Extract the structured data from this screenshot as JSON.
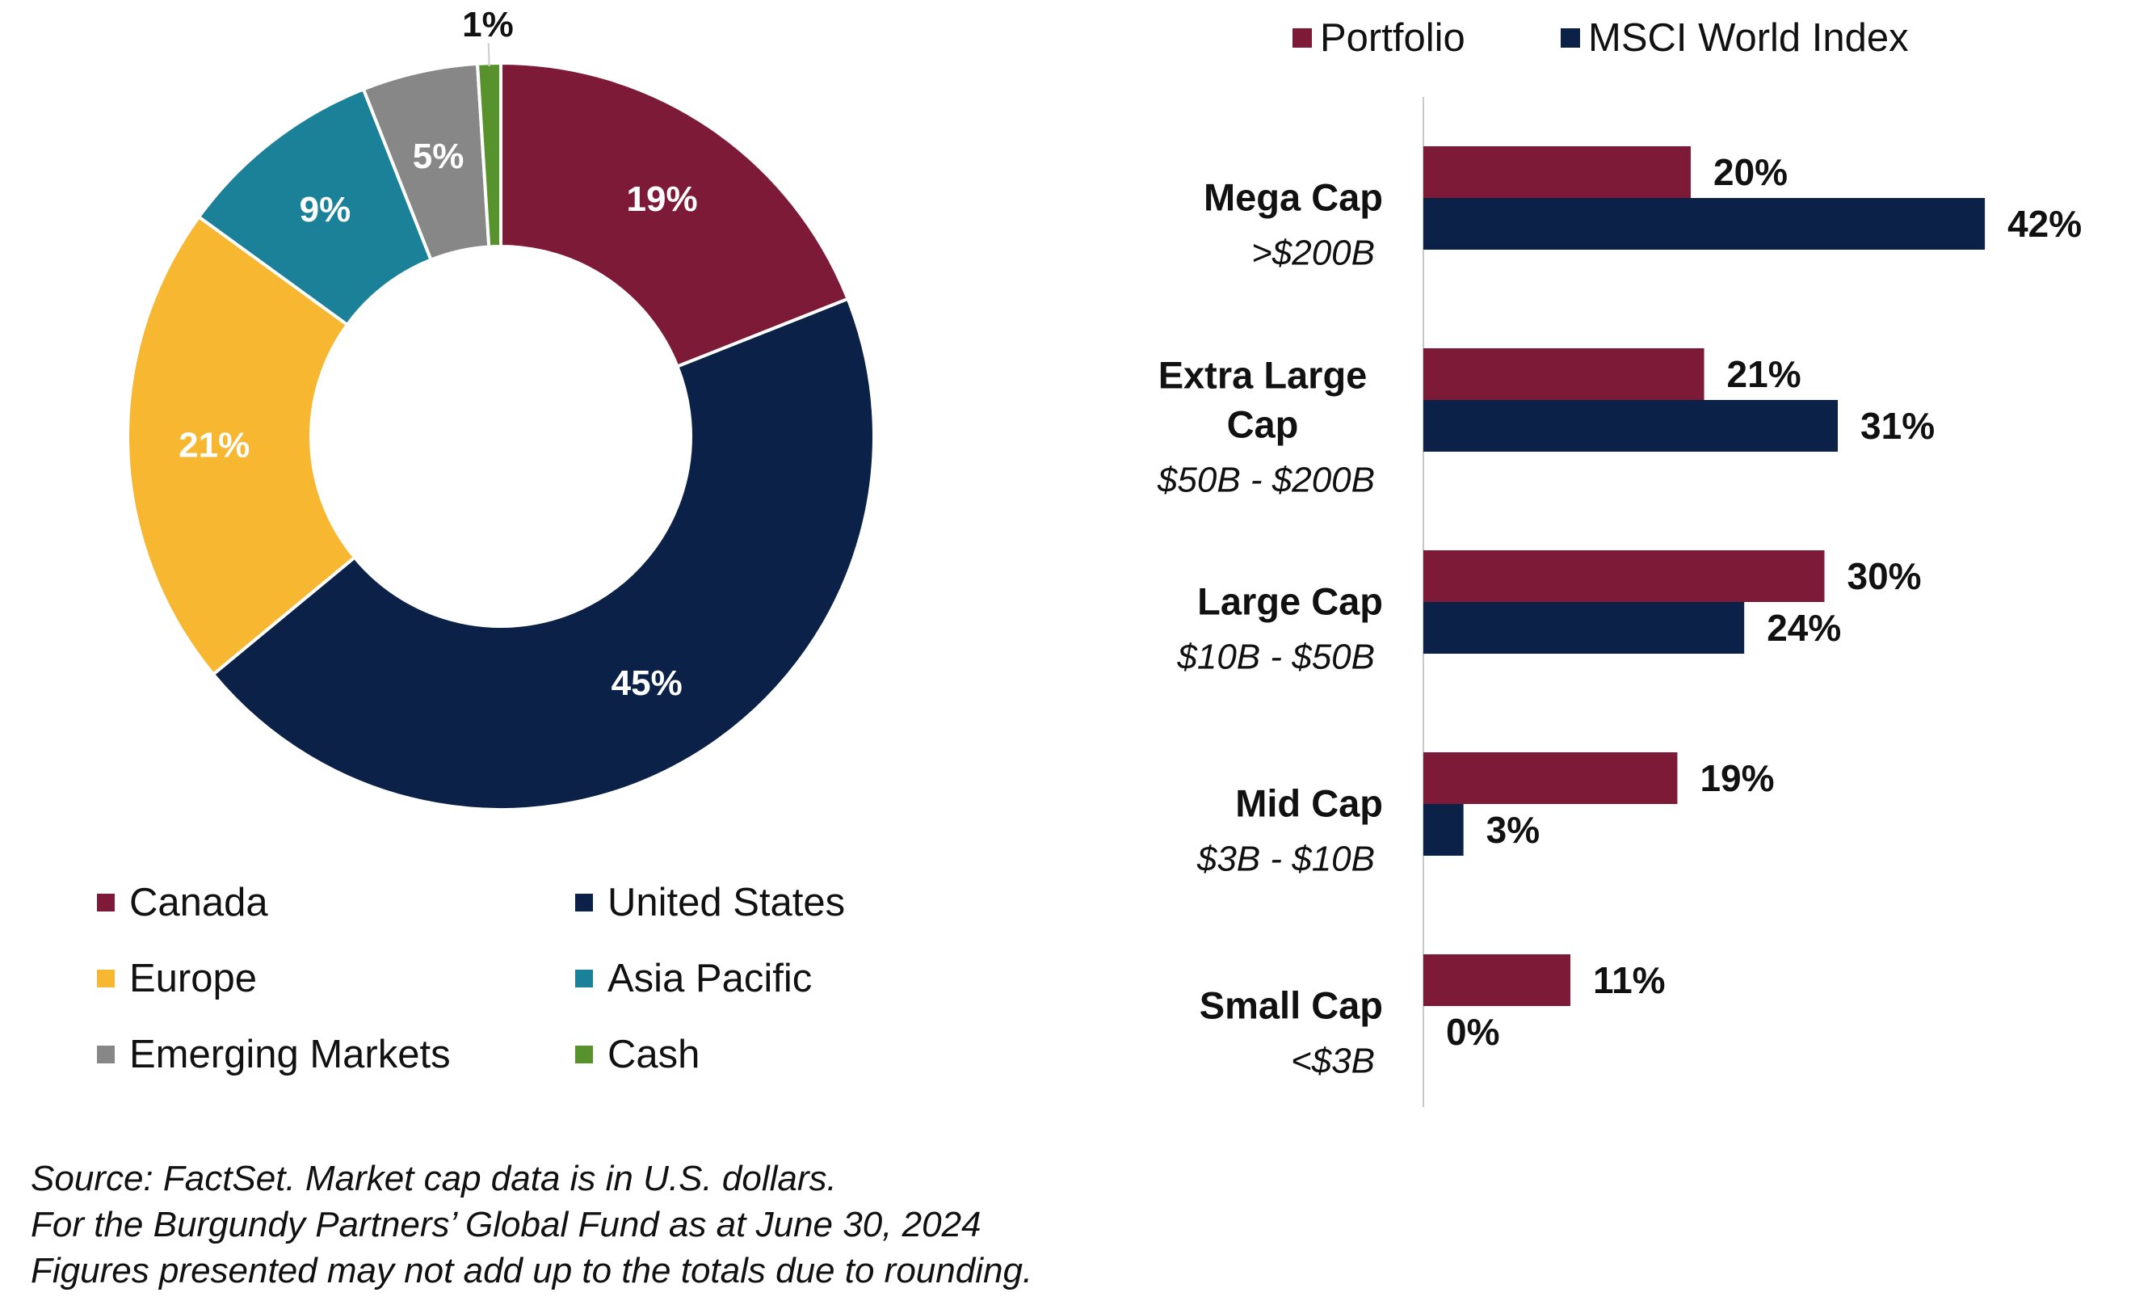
{
  "colors": {
    "canada": "#7d1a37",
    "united_states": "#0b2147",
    "europe": "#f7b731",
    "asia_pacific": "#1b8199",
    "emerging_markets": "#878787",
    "cash": "#57922c",
    "portfolio": "#7d1a37",
    "msci": "#0b2147",
    "axis": "#c8c8c8"
  },
  "chart_data": [
    {
      "type": "pie",
      "donut": true,
      "title": "",
      "slices": [
        {
          "name": "Canada",
          "value": 19,
          "label": "19%",
          "color_key": "canada",
          "label_color": "#ffffff"
        },
        {
          "name": "United States",
          "value": 45,
          "label": "45%",
          "color_key": "united_states",
          "label_color": "#ffffff"
        },
        {
          "name": "Europe",
          "value": 21,
          "label": "21%",
          "color_key": "europe",
          "label_color": "#ffffff"
        },
        {
          "name": "Asia Pacific",
          "value": 9,
          "label": "9%",
          "color_key": "asia_pacific",
          "label_color": "#ffffff"
        },
        {
          "name": "Emerging Markets",
          "value": 5,
          "label": "5%",
          "color_key": "emerging_markets",
          "label_color": "#ffffff"
        },
        {
          "name": "Cash",
          "value": 1,
          "label": "1%",
          "color_key": "cash",
          "label_color": "#111111"
        }
      ],
      "legend": [
        "Canada",
        "United States",
        "Europe",
        "Asia Pacific",
        "Emerging Markets",
        "Cash"
      ],
      "legend_placement": "bottom"
    },
    {
      "type": "bar",
      "orientation": "horizontal",
      "title": "",
      "categories": [
        {
          "name": "Mega Cap",
          "range": ">$200B"
        },
        {
          "name": "Extra Large Cap",
          "range": "$50B - $200B"
        },
        {
          "name": "Large Cap",
          "range": "$10B - $50B"
        },
        {
          "name": "Mid Cap",
          "range": "$3B - $10B"
        },
        {
          "name": "Small Cap",
          "range": "<$3B"
        }
      ],
      "series": [
        {
          "name": "Portfolio",
          "color_key": "portfolio",
          "values": [
            20,
            21,
            30,
            19,
            11
          ],
          "labels": [
            "20%",
            "21%",
            "30%",
            "19%",
            "11%"
          ]
        },
        {
          "name": "MSCI World Index",
          "color_key": "msci",
          "values": [
            42,
            31,
            24,
            3,
            0
          ],
          "labels": [
            "42%",
            "31%",
            "24%",
            "3%",
            "0%"
          ]
        }
      ],
      "xlim": [
        0,
        50
      ],
      "grid": false,
      "legend_placement": "top"
    }
  ],
  "footnotes": [
    "Source: FactSet. Market cap data is in U.S. dollars.",
    "For the Burgundy Partners’ Global Fund as at June 30, 2024",
    "Figures presented may not add up to the totals due to rounding."
  ]
}
